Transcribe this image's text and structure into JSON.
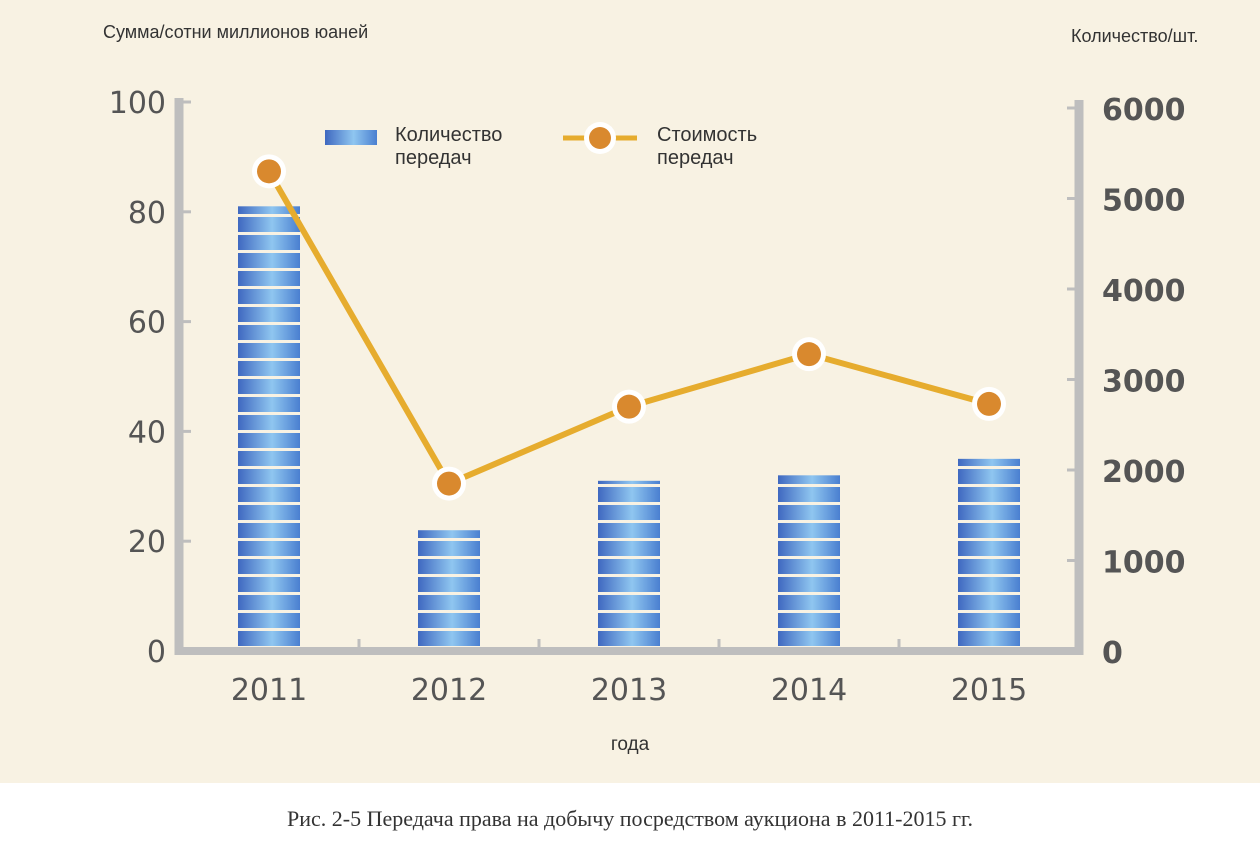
{
  "chart_data": {
    "type": "bar+line",
    "categories": [
      "2011",
      "2012",
      "2013",
      "2014",
      "2015"
    ],
    "left_axis": {
      "label": "Сумма/сотни миллионов юаней",
      "ticks": [
        0,
        20,
        40,
        60,
        80,
        100
      ],
      "range": [
        0,
        100
      ]
    },
    "right_axis": {
      "label": "Количество/шт.",
      "ticks": [
        0,
        1000,
        2000,
        3000,
        4000,
        5000,
        6000
      ],
      "range": [
        0,
        6000
      ]
    },
    "xlabel": "года",
    "series": [
      {
        "name": "Количество передач",
        "type": "bar",
        "axis": "left",
        "values": [
          81,
          22,
          31,
          32,
          35
        ]
      },
      {
        "name": "Стоимость передач",
        "type": "line",
        "axis": "right",
        "values": [
          5300,
          1850,
          2700,
          3280,
          2730
        ]
      }
    ],
    "colors": {
      "bar_dark": "#3f68c0",
      "bar_light": "#8fc6f0",
      "line": "#e6ac2e",
      "marker": "#d9892e",
      "axis": "#bebebe",
      "background": "#f8f2e3"
    }
  },
  "legend": {
    "bar_label": "Количество передач",
    "line_label": "Стоимость передач"
  },
  "caption": "Рис. 2-5 Передача права на добычу посредством аукциона в 2011-2015 гг."
}
